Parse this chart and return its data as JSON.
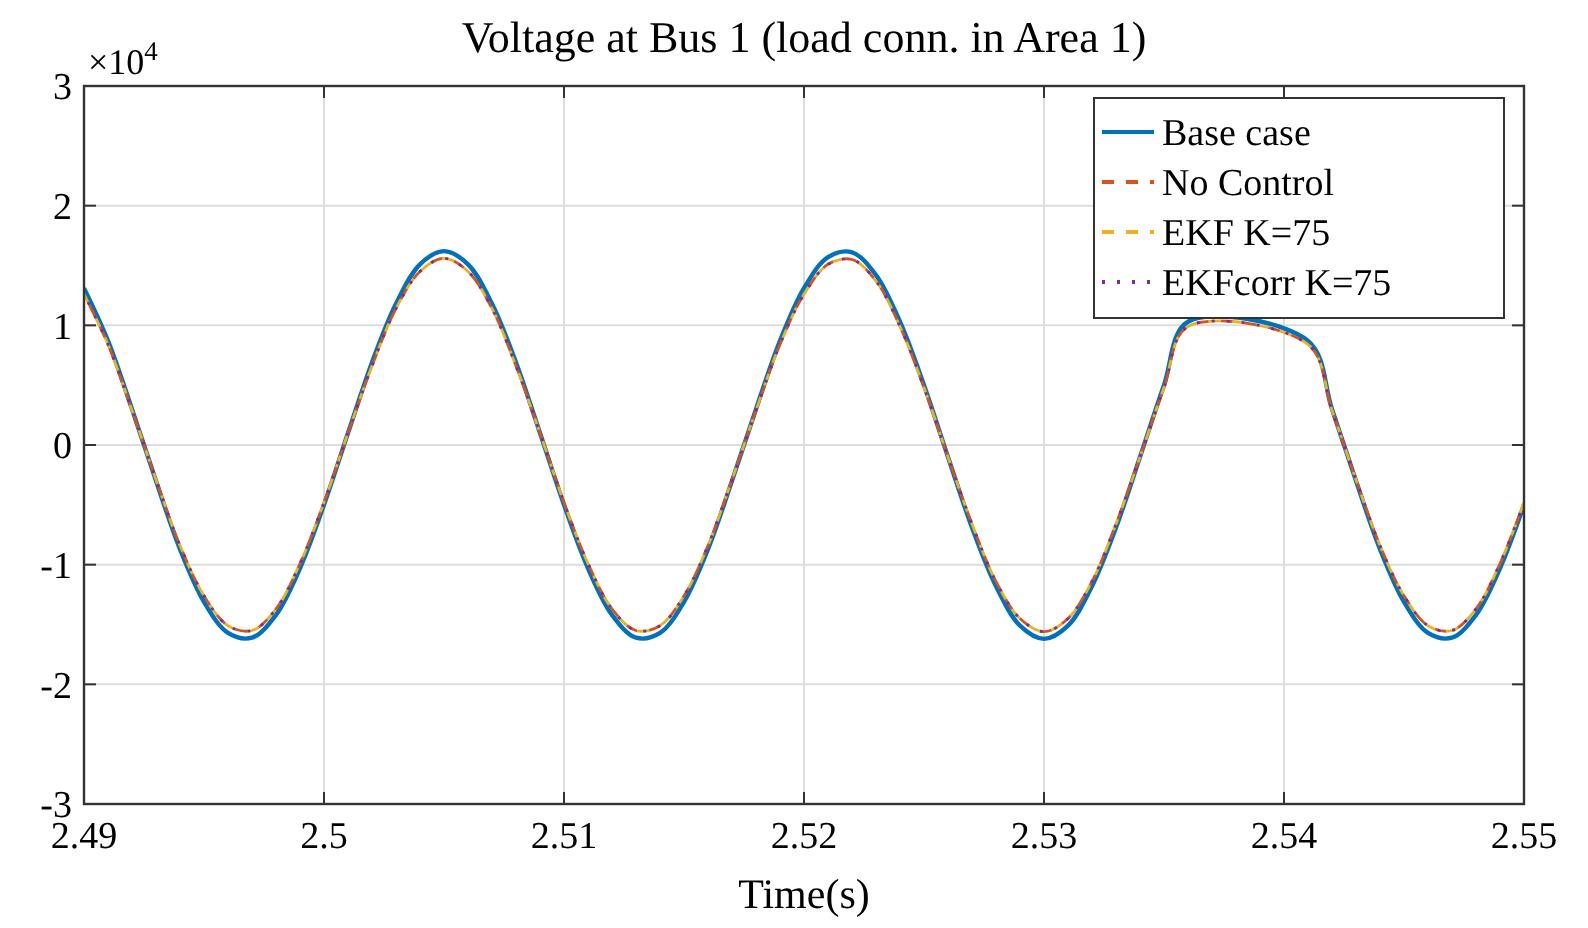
{
  "chart_data": {
    "type": "line",
    "title": "Voltage at Bus 1 (load conn. in Area 1)",
    "xlabel": "Time(s)",
    "annotations": [
      "×10$^{4}$"
    ],
    "x": [
      2.49,
      2.491,
      2.492,
      2.493,
      2.494,
      2.495,
      2.496,
      2.497,
      2.498,
      2.499,
      2.5,
      2.501,
      2.502,
      2.503,
      2.504,
      2.505,
      2.506,
      2.507,
      2.508,
      2.509,
      2.51,
      2.511,
      2.512,
      2.513,
      2.514,
      2.515,
      2.516,
      2.517,
      2.518,
      2.519,
      2.52,
      2.521,
      2.522,
      2.523,
      2.524,
      2.525,
      2.526,
      2.527,
      2.528,
      2.529,
      2.53,
      2.531,
      2.532,
      2.533,
      2.534,
      2.535,
      2.536,
      2.541,
      2.542,
      2.543,
      2.544,
      2.545,
      2.546,
      2.547,
      2.548,
      2.549,
      2.55
    ],
    "series": [
      {
        "name": "Base case",
        "color": "#0072bd",
        "line_style": "solid",
        "values": [
          1.31,
          0.87,
          0.3,
          -0.3,
          -0.87,
          -1.31,
          -1.57,
          -1.61,
          -1.42,
          -1.03,
          -0.5,
          0.1,
          0.69,
          1.18,
          1.51,
          1.62,
          1.51,
          1.18,
          0.69,
          0.1,
          -0.5,
          -1.03,
          -1.42,
          -1.61,
          -1.57,
          -1.31,
          -0.87,
          -0.3,
          0.3,
          0.87,
          1.31,
          1.57,
          1.61,
          1.42,
          1.03,
          0.5,
          -0.1,
          -0.69,
          -1.18,
          -1.51,
          -1.62,
          -1.51,
          -1.18,
          -0.69,
          -0.1,
          0.5,
          1.03,
          0.87,
          0.3,
          -0.3,
          -0.87,
          -1.31,
          -1.57,
          -1.61,
          -1.42,
          -1.03,
          -0.5
        ]
      },
      {
        "name": "No Control",
        "color": "#d95319",
        "line_style": "dashed",
        "values": [
          1.26,
          0.84,
          0.29,
          -0.29,
          -0.84,
          -1.26,
          -1.51,
          -1.55,
          -1.37,
          -0.99,
          -0.48,
          0.1,
          0.66,
          1.14,
          1.45,
          1.56,
          1.45,
          1.14,
          0.66,
          0.1,
          -0.48,
          -0.99,
          -1.37,
          -1.55,
          -1.51,
          -1.26,
          -0.84,
          -0.29,
          0.29,
          0.84,
          1.26,
          1.51,
          1.55,
          1.37,
          0.99,
          0.48,
          -0.1,
          -0.66,
          -1.14,
          -1.45,
          -1.56,
          -1.45,
          -1.14,
          -0.66,
          -0.1,
          0.48,
          0.99,
          0.84,
          0.29,
          -0.29,
          -0.84,
          -1.26,
          -1.51,
          -1.55,
          -1.37,
          -0.99,
          -0.48
        ]
      },
      {
        "name": "EKF K=75",
        "color": "#edb120",
        "line_style": "dashed",
        "values": [
          1.26,
          0.84,
          0.29,
          -0.29,
          -0.84,
          -1.26,
          -1.51,
          -1.55,
          -1.37,
          -0.99,
          -0.48,
          0.1,
          0.66,
          1.14,
          1.45,
          1.56,
          1.45,
          1.14,
          0.66,
          0.1,
          -0.48,
          -0.99,
          -1.37,
          -1.55,
          -1.51,
          -1.26,
          -0.84,
          -0.29,
          0.29,
          0.84,
          1.26,
          1.51,
          1.55,
          1.37,
          0.99,
          0.48,
          -0.1,
          -0.66,
          -1.14,
          -1.45,
          -1.56,
          -1.45,
          -1.14,
          -0.66,
          -0.1,
          0.48,
          0.99,
          0.84,
          0.29,
          -0.29,
          -0.84,
          -1.26,
          -1.51,
          -1.55,
          -1.37,
          -0.99,
          -0.48
        ]
      },
      {
        "name": "EKFcorr K=75",
        "color": "#7e2f8e",
        "line_style": "dotted",
        "values": [
          1.26,
          0.84,
          0.29,
          -0.29,
          -0.84,
          -1.26,
          -1.51,
          -1.55,
          -1.37,
          -0.99,
          -0.48,
          0.1,
          0.66,
          1.14,
          1.45,
          1.56,
          1.45,
          1.14,
          0.66,
          0.1,
          -0.48,
          -0.99,
          -1.37,
          -1.55,
          -1.51,
          -1.26,
          -0.84,
          -0.29,
          0.29,
          0.84,
          1.26,
          1.51,
          1.55,
          1.37,
          0.99,
          0.48,
          -0.1,
          -0.66,
          -1.14,
          -1.45,
          -1.56,
          -1.45,
          -1.14,
          -0.66,
          -0.1,
          0.48,
          0.99,
          0.84,
          0.29,
          -0.29,
          -0.84,
          -1.26,
          -1.51,
          -1.55,
          -1.37,
          -0.99,
          -0.48
        ]
      }
    ],
    "xlim": [
      2.49,
      2.55
    ],
    "xticks": [
      2.49,
      2.5,
      2.51,
      2.52,
      2.53,
      2.54,
      2.55
    ],
    "ylim": [
      -3,
      3
    ],
    "yticks": [
      -3,
      -2,
      -1,
      0,
      1,
      2,
      3
    ],
    "grid": true,
    "legend": "top right"
  }
}
